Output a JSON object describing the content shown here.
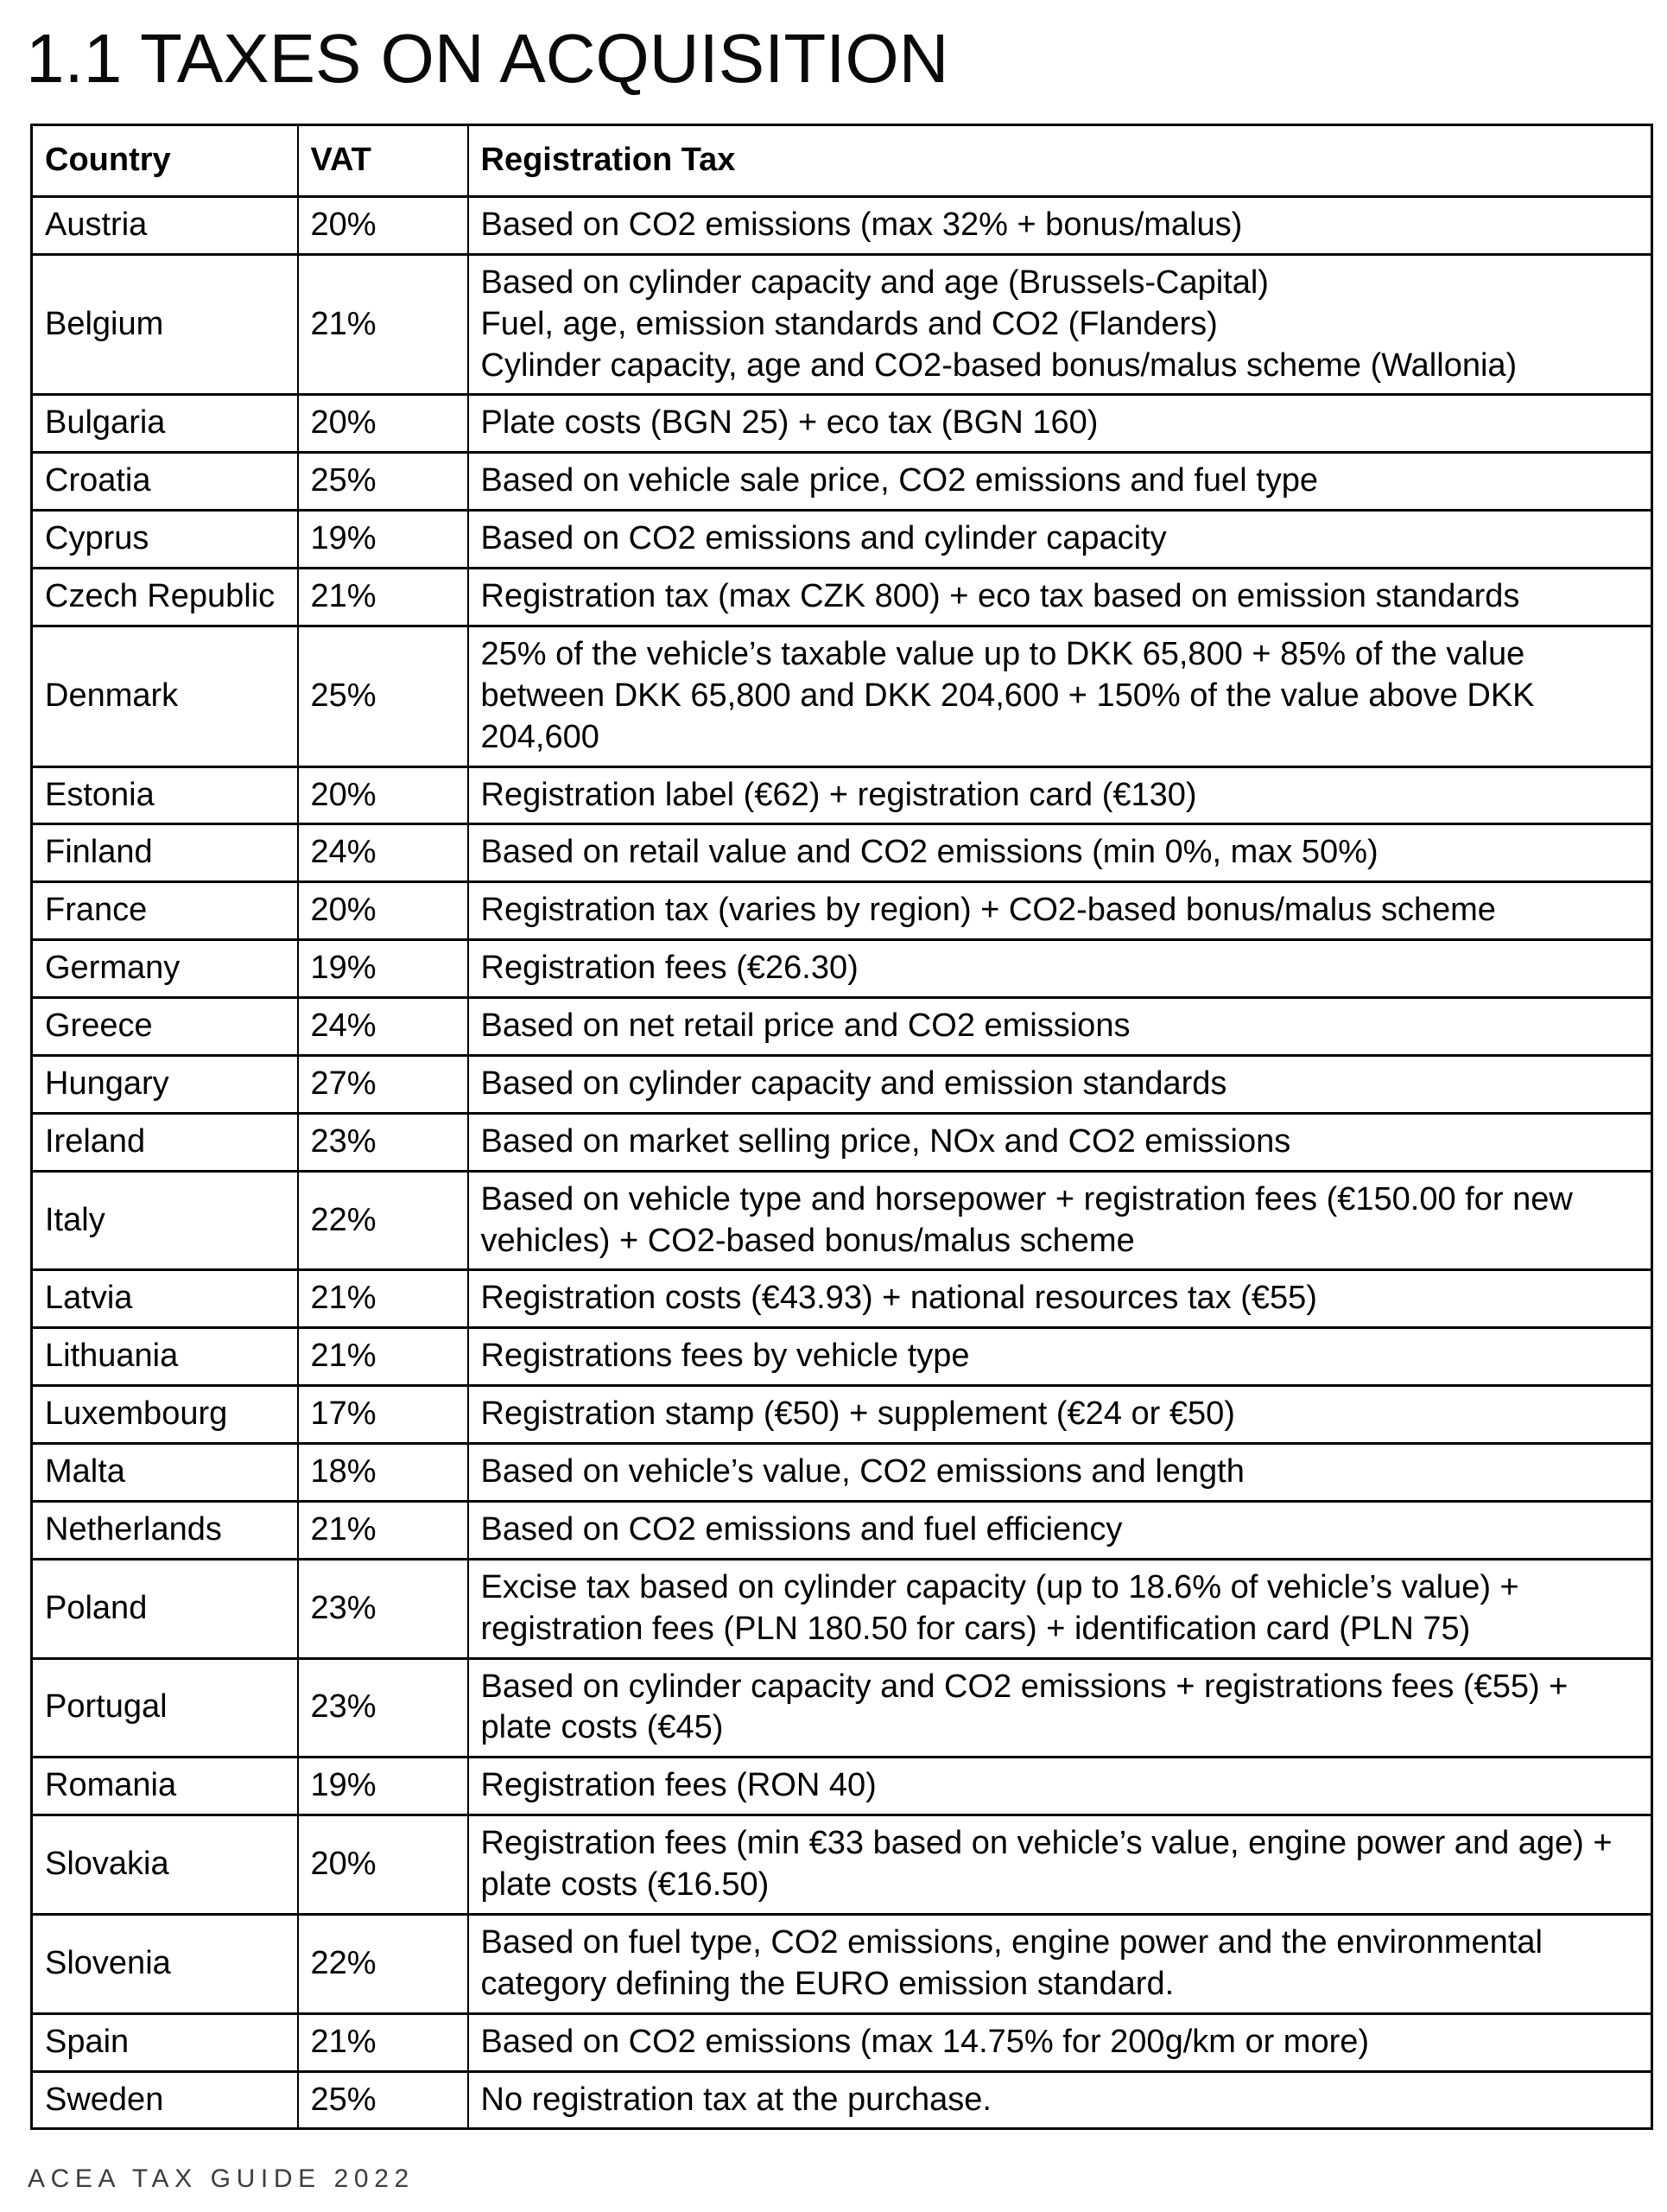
{
  "title": "1.1 TAXES ON ACQUISITION",
  "footer": "ACEA TAX GUIDE 2022",
  "table": {
    "columns": [
      "Country",
      "VAT",
      "Registration Tax"
    ],
    "rows": [
      {
        "country": "Austria",
        "vat": "20%",
        "registration_tax": [
          "Based on CO2 emissions (max 32% + bonus/malus)"
        ]
      },
      {
        "country": "Belgium",
        "vat": "21%",
        "registration_tax": [
          "Based on cylinder capacity and age (Brussels-Capital)",
          "Fuel, age, emission standards and CO2 (Flanders)",
          "Cylinder capacity, age and CO2-based bonus/malus scheme (Wallonia)"
        ]
      },
      {
        "country": "Bulgaria",
        "vat": "20%",
        "registration_tax": [
          "Plate costs (BGN 25) + eco tax (BGN 160)"
        ]
      },
      {
        "country": "Croatia",
        "vat": "25%",
        "registration_tax": [
          "Based on vehicle sale price, CO2 emissions and fuel type"
        ]
      },
      {
        "country": "Cyprus",
        "vat": "19%",
        "registration_tax": [
          "Based on CO2 emissions and cylinder capacity"
        ]
      },
      {
        "country": "Czech Republic",
        "vat": "21%",
        "registration_tax": [
          "Registration tax (max CZK 800) + eco tax based on emission standards"
        ]
      },
      {
        "country": "Denmark",
        "vat": "25%",
        "registration_tax": [
          "25% of the vehicle’s taxable value up to DKK 65,800 + 85% of the value between DKK 65,800 and DKK 204,600 + 150% of the value above DKK 204,600"
        ]
      },
      {
        "country": "Estonia",
        "vat": "20%",
        "registration_tax": [
          "Registration label (€62) + registration card (€130)"
        ]
      },
      {
        "country": "Finland",
        "vat": "24%",
        "registration_tax": [
          "Based on retail value and CO2 emissions (min 0%, max 50%)"
        ]
      },
      {
        "country": "France",
        "vat": "20%",
        "registration_tax": [
          "Registration tax (varies by region) + CO2-based bonus/malus scheme"
        ]
      },
      {
        "country": "Germany",
        "vat": "19%",
        "registration_tax": [
          "Registration fees (€26.30)"
        ]
      },
      {
        "country": "Greece",
        "vat": "24%",
        "registration_tax": [
          "Based on net retail price and CO2 emissions"
        ]
      },
      {
        "country": "Hungary",
        "vat": "27%",
        "registration_tax": [
          "Based on cylinder capacity and emission standards"
        ]
      },
      {
        "country": "Ireland",
        "vat": "23%",
        "registration_tax": [
          "Based on market selling price, NOx and CO2 emissions"
        ]
      },
      {
        "country": "Italy",
        "vat": "22%",
        "registration_tax": [
          "Based on vehicle type and horsepower + registration fees (€150.00 for new vehicles) + CO2-based bonus/malus scheme"
        ]
      },
      {
        "country": "Latvia",
        "vat": "21%",
        "registration_tax": [
          "Registration costs (€43.93) + national resources tax (€55)"
        ]
      },
      {
        "country": "Lithuania",
        "vat": "21%",
        "registration_tax": [
          "Registrations fees by vehicle type"
        ]
      },
      {
        "country": "Luxembourg",
        "vat": "17%",
        "registration_tax": [
          "Registration stamp (€50) + supplement (€24 or €50)"
        ]
      },
      {
        "country": "Malta",
        "vat": "18%",
        "registration_tax": [
          "Based on vehicle’s value, CO2 emissions and length"
        ]
      },
      {
        "country": "Netherlands",
        "vat": "21%",
        "registration_tax": [
          "Based on CO2 emissions and fuel efficiency"
        ]
      },
      {
        "country": "Poland",
        "vat": "23%",
        "registration_tax": [
          "Excise tax based on cylinder capacity (up to 18.6% of vehicle’s value) + registration fees (PLN 180.50 for cars) + identification card (PLN 75)"
        ]
      },
      {
        "country": "Portugal",
        "vat": "23%",
        "registration_tax": [
          "Based on cylinder capacity and CO2 emissions + registrations fees (€55) + plate costs (€45)"
        ]
      },
      {
        "country": "Romania",
        "vat": "19%",
        "registration_tax": [
          "Registration fees (RON 40)"
        ]
      },
      {
        "country": "Slovakia",
        "vat": "20%",
        "registration_tax": [
          "Registration fees (min €33 based on vehicle’s value, engine power and age) + plate costs (€16.50)"
        ]
      },
      {
        "country": "Slovenia",
        "vat": "22%",
        "registration_tax": [
          "Based on fuel type, CO2 emissions, engine power and the environmental category defining the EURO emission standard."
        ]
      },
      {
        "country": "Spain",
        "vat": "21%",
        "registration_tax": [
          "Based on CO2 emissions (max 14.75% for 200g/km or more)"
        ]
      },
      {
        "country": "Sweden",
        "vat": "25%",
        "registration_tax": [
          "No registration tax at the purchase."
        ]
      }
    ]
  }
}
